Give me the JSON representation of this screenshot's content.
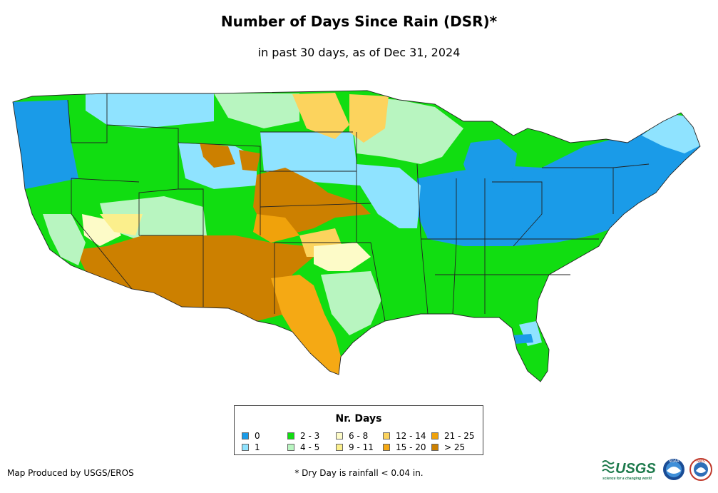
{
  "header": {
    "title": "Number of Days Since Rain (DSR)*",
    "subtitle": "in past 30 days, as of Dec 31, 2024"
  },
  "legend": {
    "title": "Nr. Days",
    "items": [
      {
        "label": "0",
        "color": "#1a9be8"
      },
      {
        "label": "1",
        "color": "#8fe3ff"
      },
      {
        "label": "2 - 3",
        "color": "#11dd11"
      },
      {
        "label": "4 - 5",
        "color": "#b8f5c0"
      },
      {
        "label": "6 - 8",
        "color": "#fdfbc8"
      },
      {
        "label": "9 - 11",
        "color": "#fbef8c"
      },
      {
        "label": "12 - 14",
        "color": "#fcd35d"
      },
      {
        "label": "15 - 20",
        "color": "#f5a914"
      },
      {
        "label": "21 - 25",
        "color": "#f0a20b"
      },
      {
        "label": "> 25",
        "color": "#cc8000"
      }
    ]
  },
  "footer": {
    "credit": "Map Produced by USGS/EROS",
    "footnote": "* Dry Day is rainfall < 0.04 in.",
    "logos": [
      {
        "name": "usgs-logo",
        "text": "USGS",
        "tagline": "science for a changing world"
      },
      {
        "name": "noaa-logo",
        "text": "NOAA"
      },
      {
        "name": "nws-logo",
        "text": "NWS"
      }
    ]
  }
}
